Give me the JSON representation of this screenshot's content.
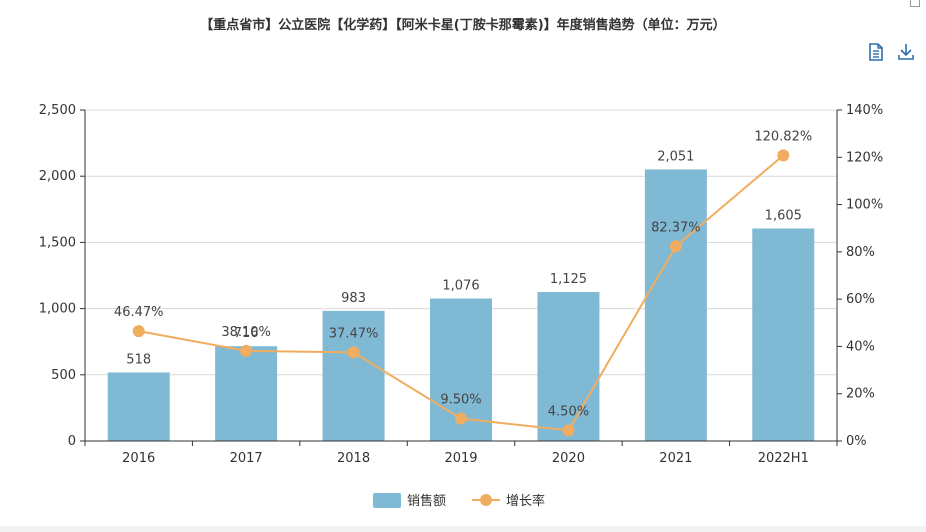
{
  "title": "【重点省市】公立医院【化学药】【阿米卡星(丁胺卡那霉素)】年度销售趋势（单位：万元）",
  "toolbar": {
    "data_view": "data-view-icon",
    "download": "download-icon"
  },
  "colors": {
    "bar": "#80b9d4",
    "line": "#f0ad5f",
    "axis": "#333333",
    "grid": "#d9d9d9"
  },
  "chart_data": {
    "type": "bar",
    "categories": [
      "2016",
      "2017",
      "2018",
      "2019",
      "2020",
      "2021",
      "2022H1"
    ],
    "series": [
      {
        "name": "销售额",
        "type": "bar",
        "axis": "left",
        "values": [
          518,
          716,
          983,
          1076,
          1125,
          2051,
          1605
        ],
        "labels": [
          "518",
          "716",
          "983",
          "1,076",
          "1,125",
          "2,051",
          "1,605"
        ]
      },
      {
        "name": "增长率",
        "type": "line",
        "axis": "right",
        "values": [
          46.47,
          38.1,
          37.47,
          9.5,
          4.5,
          82.37,
          120.82
        ],
        "labels": [
          "46.47%",
          "38.10%",
          "37.47%",
          "9.50%",
          "4.50%",
          "82.37%",
          "120.82%"
        ]
      }
    ],
    "yleft": {
      "min": 0,
      "max": 2500,
      "ticks": [
        0,
        500,
        1000,
        1500,
        2000,
        2500
      ],
      "tick_labels": [
        "0",
        "500",
        "1,000",
        "1,500",
        "2,000",
        "2,500"
      ]
    },
    "yright": {
      "min": 0,
      "max": 140,
      "ticks": [
        0,
        20,
        40,
        60,
        80,
        100,
        120,
        140
      ],
      "tick_labels": [
        "0%",
        "20%",
        "40%",
        "60%",
        "80%",
        "100%",
        "120%",
        "140%"
      ]
    },
    "grid": true,
    "legend": "bottom-center"
  }
}
